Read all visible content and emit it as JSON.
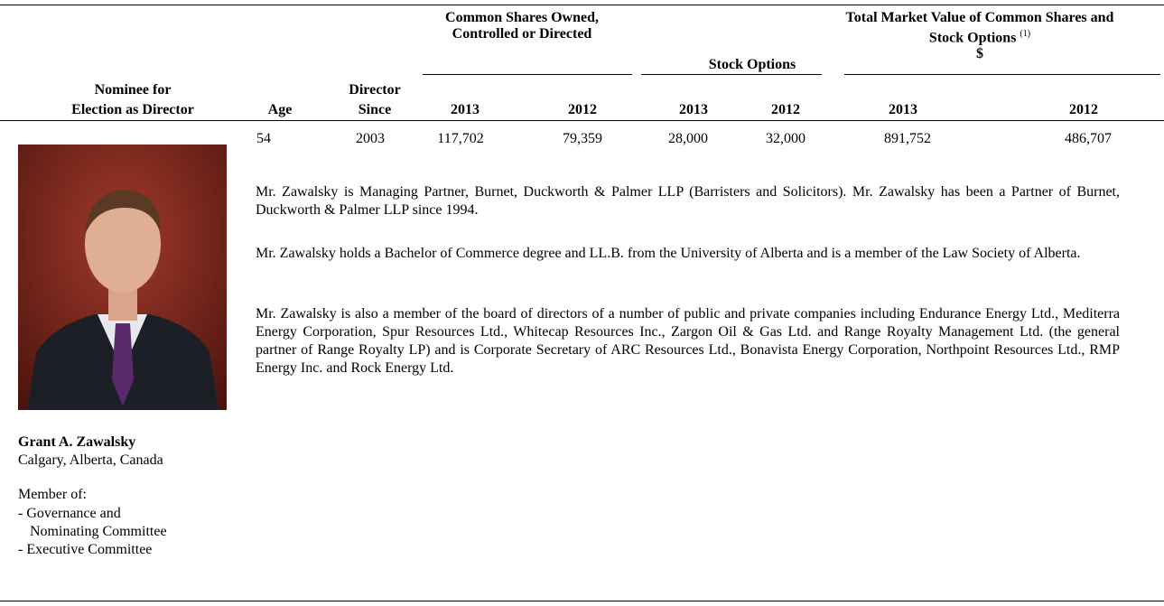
{
  "table": {
    "group_headers": {
      "common_shares": "Common Shares Owned, Controlled or Directed",
      "stock_options": "Stock Options",
      "market_value": "Total Market Value of Common Shares and Stock Options",
      "market_value_note": "(1)",
      "market_value_unit": "$"
    },
    "columns": {
      "nominee": [
        "Nominee for",
        "Election as Director"
      ],
      "age": "Age",
      "director_since": [
        "Director",
        "Since"
      ],
      "years": [
        "2013",
        "2012",
        "2013",
        "2012",
        "2013",
        "2012"
      ]
    },
    "row": {
      "age": "54",
      "director_since": "2003",
      "common_shares": [
        "117,702",
        "79,359"
      ],
      "stock_options": [
        "28,000",
        "32,000"
      ],
      "market_value": [
        "891,752",
        "486,707"
      ]
    }
  },
  "nominee": {
    "name": "Grant A. Zawalsky",
    "location": "Calgary, Alberta, Canada",
    "member_of": "Member of:",
    "committees": [
      "- Governance and",
      "Nominating Committee",
      "- Executive Committee"
    ]
  },
  "biography": [
    "Mr. Zawalsky is Managing Partner, Burnet, Duckworth & Palmer LLP (Barristers and Solicitors). Mr. Zawalsky has been a Partner of Burnet, Duckworth & Palmer LLP since 1994.",
    "Mr. Zawalsky holds a Bachelor of Commerce degree and LL.B. from the University of Alberta and is a member of the Law Society of Alberta.",
    "Mr. Zawalsky is also a member of the board of directors of a number of public and private companies including Endurance Energy Ltd., Mediterra Energy Corporation, Spur Resources Ltd., Whitecap Resources Inc., Zargon Oil & Gas Ltd. and Range Royalty Management Ltd. (the general partner of Range Royalty LP) and is Corporate Secretary of ARC Resources Ltd., Bonavista Energy Corporation, Northpoint Resources Ltd., RMP Energy Inc. and Rock Energy Ltd."
  ]
}
